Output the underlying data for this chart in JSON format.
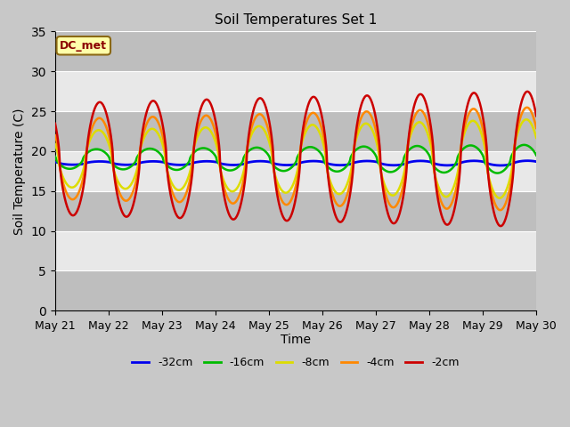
{
  "title": "Soil Temperatures Set 1",
  "xlabel": "Time",
  "ylabel": "Soil Temperature (C)",
  "ylim": [
    0,
    35
  ],
  "yticks": [
    0,
    5,
    10,
    15,
    20,
    25,
    30,
    35
  ],
  "xtick_labels": [
    "May 21",
    "May 22",
    "May 23",
    "May 24",
    "May 25",
    "May 26",
    "May 27",
    "May 28",
    "May 29",
    "May 30"
  ],
  "annotation_text": "DC_met",
  "annotation_box_facecolor": "#ffffaa",
  "annotation_box_edgecolor": "#8b6914",
  "annotation_text_color": "#8b0000",
  "fig_facecolor": "#c8c8c8",
  "plot_facecolor": "#d3d3d3",
  "gray_band_color": "#bebebe",
  "white_band_color": "#e8e8e8",
  "legend_labels": [
    "-32cm",
    "-16cm",
    "-8cm",
    "-4cm",
    "-2cm"
  ],
  "legend_colors": [
    "#0000ee",
    "#00bb00",
    "#dddd00",
    "#ff8800",
    "#cc0000"
  ],
  "series_means": [
    18.5,
    19.0,
    19.0,
    19.0,
    19.0
  ],
  "series_amp_start": [
    0.2,
    1.2,
    3.5,
    5.0,
    7.0
  ],
  "series_amp_end": [
    0.3,
    1.8,
    5.0,
    6.5,
    8.5
  ],
  "series_phase_hrs": [
    0.0,
    1.5,
    0.5,
    0.2,
    0.0
  ],
  "series_lw": [
    2.0,
    1.8,
    1.8,
    1.8,
    1.8
  ],
  "peak_hour": 14.0,
  "n_days": 9
}
